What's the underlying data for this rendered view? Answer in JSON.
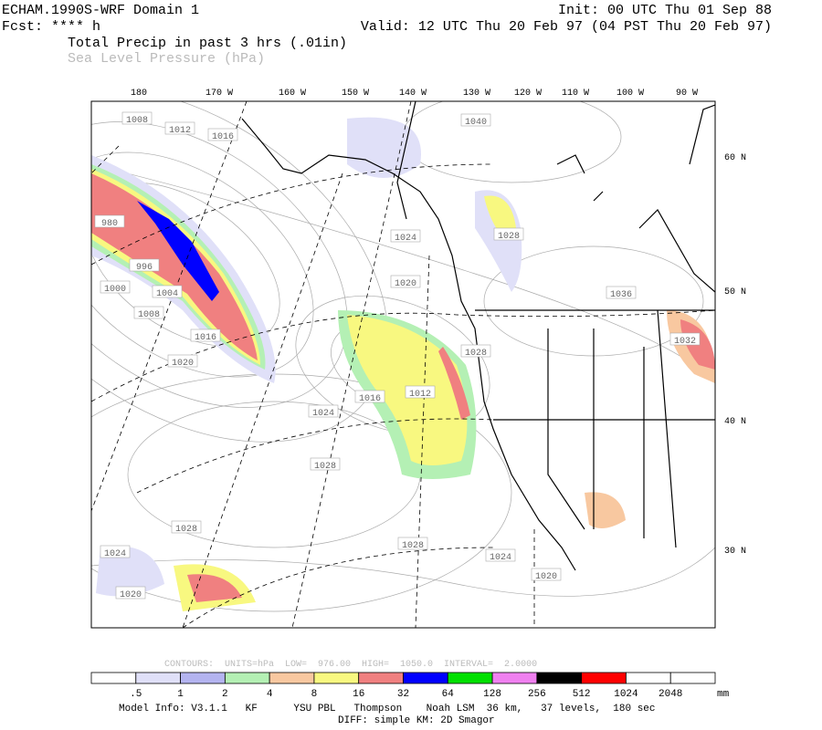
{
  "header": {
    "model": "ECHAM.1990S-WRF Domain 1",
    "init": "Init: 00 UTC Thu 01 Sep 88",
    "fcst": "Fcst: **** h",
    "valid": "Valid: 12 UTC Thu 20 Feb 97 (04 PST Thu 20 Feb 97)",
    "field1": "Total Precip in past 3 hrs (.01in)",
    "field2": "Sea Level Pressure (hPa)"
  },
  "map": {
    "lon_labels": [
      "180",
      "170 W",
      "160 W",
      "150 W",
      "140 W",
      "130 W",
      "120 W",
      "110 W",
      "100 W",
      "90 W"
    ],
    "lat_labels": [
      "60 N",
      "50 N",
      "40 N",
      "30 N"
    ],
    "pressure_labels": [
      "1008",
      "1012",
      "1016",
      "1040",
      "1024",
      "1028",
      "1020",
      "1036",
      "1032",
      "1028",
      "996",
      "1000",
      "1004",
      "1008",
      "1016",
      "1020",
      "1024",
      "1016",
      "1012",
      "1028",
      "1028",
      "1024",
      "1020",
      "1028",
      "1024",
      "1020",
      "980"
    ]
  },
  "legend": {
    "contours": "CONTOURS:  UNITS=hPa  LOW=  976.00  HIGH=  1050.0  INTERVAL=  2.0000",
    "labels": [
      ".5",
      "1",
      "2",
      "4",
      "8",
      "16",
      "32",
      "64",
      "128",
      "256",
      "512",
      "1024",
      "2048"
    ],
    "unit": "mm"
  },
  "footer": {
    "line1": "Model Info: V3.1.1   KF      YSU PBL   Thompson    Noah LSM  36 km,   37 levels,  180 sec",
    "line2": "DIFF: simple KM: 2D Smagor"
  }
}
